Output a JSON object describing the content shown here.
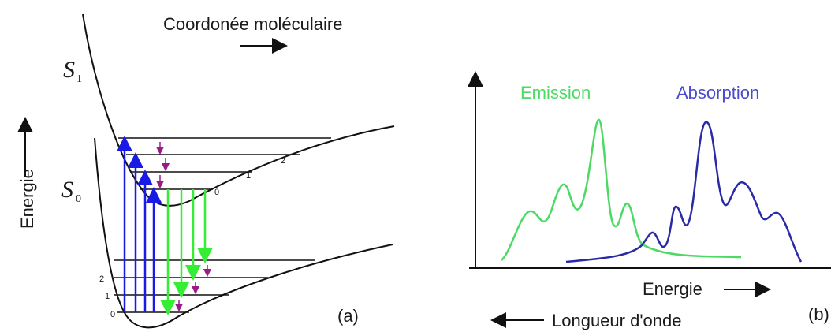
{
  "diagram_a": {
    "title": "Coordonée moléculaire",
    "y_axis_label": "Energie",
    "states": [
      {
        "letter": "S",
        "subscript": "1"
      },
      {
        "letter": "S",
        "subscript": "0"
      }
    ],
    "upper_levels": [
      "0",
      "1",
      "2"
    ],
    "lower_levels": [
      "0",
      "1",
      "2"
    ],
    "panel_label": "(a)",
    "colors": {
      "absorption": "#1a1ae6",
      "emission": "#33ee33",
      "relaxation": "#9a1a8a",
      "curve": "#111111"
    }
  },
  "diagram_b": {
    "emission_label": "Emission",
    "absorption_label": "Absorption",
    "x_label": "Energie",
    "x_label2": "Longueur d'onde",
    "panel_label": "(b)",
    "colors": {
      "emission": "#4cd964",
      "absorption": "#2a2aa8",
      "axes": "#111111"
    }
  }
}
